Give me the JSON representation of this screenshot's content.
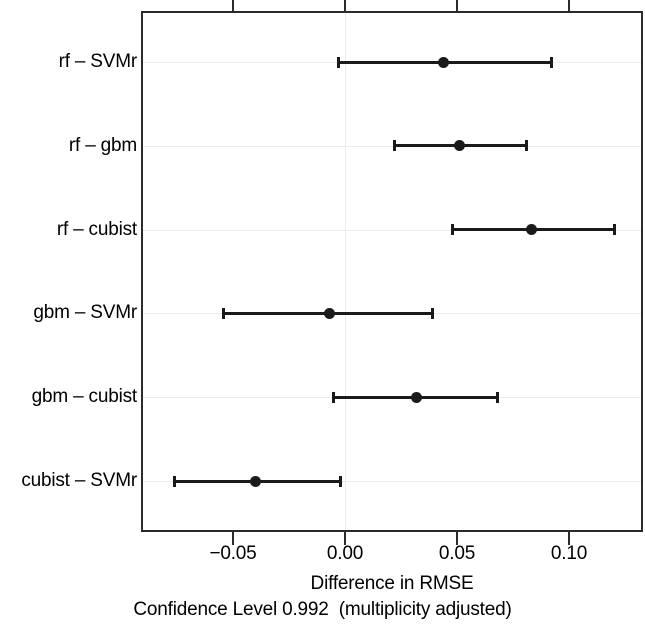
{
  "figure": {
    "xlabel": "Difference in RMSE",
    "subtitle": "Confidence Level 0.992  (multiplicity adjusted)"
  },
  "chart_data": {
    "type": "scatter",
    "subtype": "dotplot-confidence-intervals",
    "title": "",
    "xlabel": "Difference in RMSE",
    "subtitle": "Confidence Level 0.992  (multiplicity adjusted)",
    "categories": [
      "rf – SVMr",
      "rf – gbm",
      "rf – cubist",
      "gbm – SVMr",
      "gbm – cubist",
      "cubist – SVMr"
    ],
    "estimates": [
      0.044,
      0.051,
      0.083,
      -0.007,
      0.032,
      -0.04
    ],
    "lower": [
      -0.003,
      0.022,
      0.048,
      -0.054,
      -0.005,
      -0.076
    ],
    "upper": [
      0.092,
      0.081,
      0.12,
      0.039,
      0.068,
      -0.002
    ],
    "x_ticks": [
      -0.05,
      0.0,
      0.05,
      0.1
    ],
    "x_tick_labels": [
      "−0.05",
      "0.00",
      "0.05",
      "0.10"
    ],
    "xlim": [
      -0.09,
      0.132
    ],
    "reference_line_x": 0,
    "grid": "horizontal-per-category",
    "legend": "none",
    "colors": {
      "marker": "#1a1a1a",
      "interval_line": "#1a1a1a",
      "border": "#2b2b2b",
      "grid": "#ececec",
      "background": "#ffffff",
      "text": "#000000"
    }
  }
}
